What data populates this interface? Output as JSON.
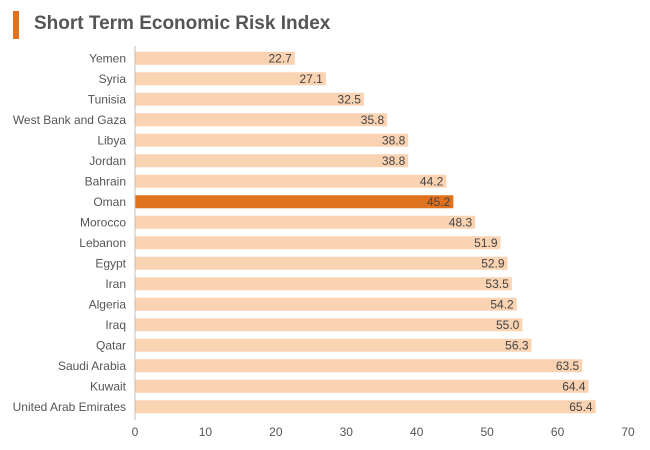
{
  "title": "Short Term Economic Risk Index",
  "colors": {
    "accent": "#e0711d",
    "bar": "#fad3b2",
    "highlight": "#e0711d",
    "axis": "#bfbfbf",
    "text": "#555555"
  },
  "chart_data": {
    "type": "bar",
    "orientation": "horizontal",
    "title": "Short Term Economic Risk Index",
    "xlabel": "",
    "ylabel": "",
    "xlim": [
      0,
      70
    ],
    "ticks": [
      0,
      10,
      20,
      30,
      40,
      50,
      60,
      70
    ],
    "grid": false,
    "highlight": "Oman",
    "categories": [
      "Yemen",
      "Syria",
      "Tunisia",
      "West Bank and Gaza",
      "Libya",
      "Jordan",
      "Bahrain",
      "Oman",
      "Morocco",
      "Lebanon",
      "Egypt",
      "Iran",
      "Algeria",
      "Iraq",
      "Qatar",
      "Saudi Arabia",
      "Kuwait",
      "United Arab Emirates"
    ],
    "values": [
      22.7,
      27.1,
      32.5,
      35.8,
      38.8,
      38.8,
      44.2,
      45.2,
      48.3,
      51.9,
      52.9,
      53.5,
      54.2,
      55.0,
      56.3,
      63.5,
      64.4,
      65.4
    ],
    "value_labels": [
      "22.7",
      "27.1",
      "32.5",
      "35.8",
      "38.8",
      "38.8",
      "44.2",
      "45.2",
      "48.3",
      "51.9",
      "52.9",
      "53.5",
      "54.2",
      "55.0",
      "56.3",
      "63.5",
      "64.4",
      "65.4"
    ]
  }
}
